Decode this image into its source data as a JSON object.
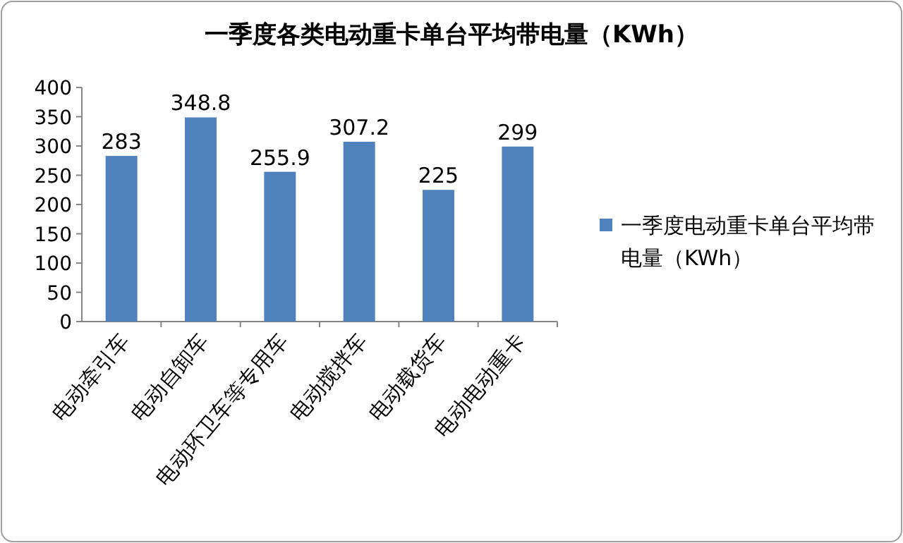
{
  "chart_data": {
    "type": "bar",
    "title": "一季度各类电动重卡单台平均带电量（KWh）",
    "categories": [
      "电动牵引车",
      "电动自卸车",
      "电动环卫车等专用车",
      "电动搅拌车",
      "电动载货车",
      "电动电动重卡"
    ],
    "series": [
      {
        "name": "一季度电动重卡单台平均带电量（KWh）",
        "color": "#4f81bd",
        "values": [
          283,
          348.8,
          255.9,
          307.2,
          225,
          299
        ]
      }
    ],
    "ylim": [
      0,
      400
    ],
    "yticks": [
      0,
      50,
      100,
      150,
      200,
      250,
      300,
      350,
      400
    ],
    "data_labels": true,
    "legend": "right",
    "grid": false
  }
}
